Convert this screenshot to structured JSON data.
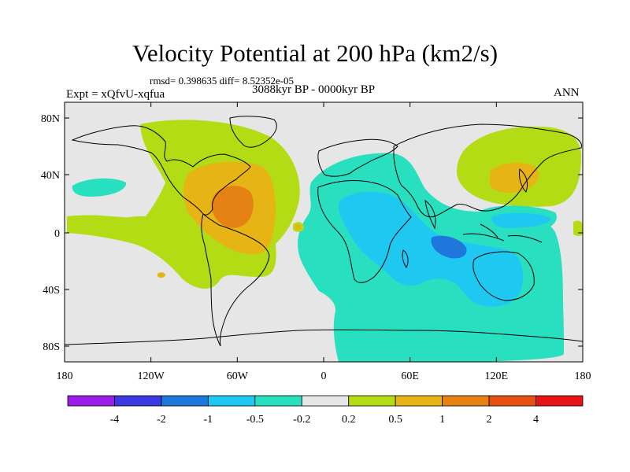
{
  "title": "Velocity Potential at 200 hPa (km2/s)",
  "stats": "rmsd= 0.398635  diff= 8.52352e-05",
  "experiment": "Expt = xQfvU-xqfua",
  "period": "3088kyr BP - 0000kyr BP",
  "season": "ANN",
  "map": {
    "x_ticks": [
      "180",
      "120W",
      "60W",
      "0",
      "60E",
      "120E",
      "180"
    ],
    "y_ticks": [
      "80N",
      "40N",
      "0",
      "40S",
      "80S"
    ]
  },
  "colorbar": {
    "labels": [
      "-4",
      "-2",
      "-1",
      "-0.5",
      "-0.2",
      "0.2",
      "0.5",
      "1",
      "2",
      "4"
    ],
    "colors": [
      "#9a1ee6",
      "#3a3ae0",
      "#1e78dc",
      "#1ec8f0",
      "#28e0c0",
      "#e6e6e6",
      "#b4dc14",
      "#e6b414",
      "#e68214",
      "#e65014",
      "#e61414"
    ]
  },
  "palette": {
    "neutral": "#e6e6e6",
    "weak_negative": "#28e0c0",
    "moderate_negative": "#1ec8f0",
    "strong_negative": "#1e78dc",
    "weak_positive": "#b4dc14",
    "moderate_positive": "#e6b414",
    "strong_positive": "#e68214"
  }
}
